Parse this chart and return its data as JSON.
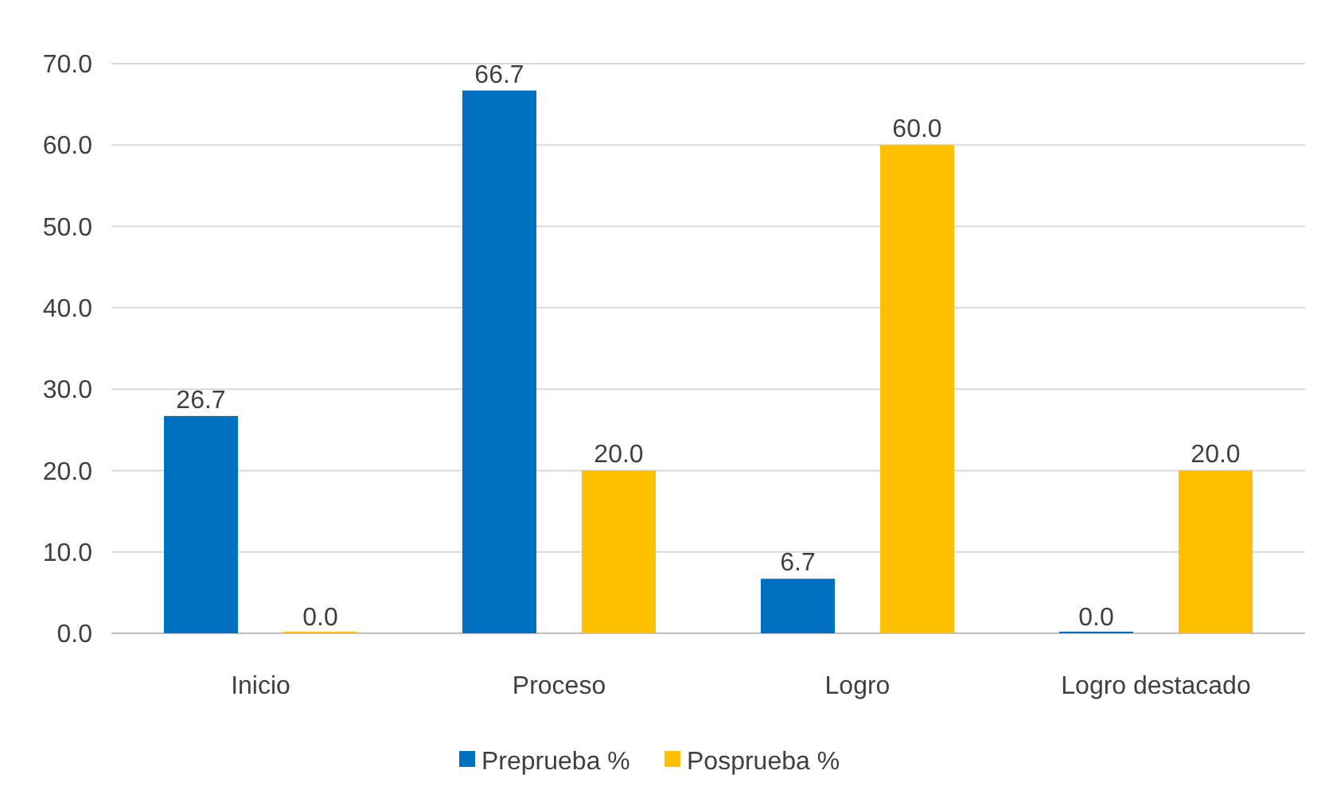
{
  "chart_data": {
    "type": "bar",
    "categories": [
      "Inicio",
      "Proceso",
      "Logro",
      "Logro destacado"
    ],
    "series": [
      {
        "name": "Preprueba %",
        "color": "#0070c0",
        "values": [
          26.7,
          66.7,
          6.7,
          0
        ],
        "value_labels": [
          "26.7",
          "66.7",
          "6.7",
          "0.0"
        ]
      },
      {
        "name": "Posprueba %",
        "color": "#ffc000",
        "values": [
          0,
          20,
          60,
          20
        ],
        "value_labels": [
          "0.0",
          "20.0",
          "60.0",
          "20.0"
        ]
      }
    ],
    "ylim": [
      0,
      70
    ],
    "yticks": [
      {
        "value": 0,
        "label": "0.0"
      },
      {
        "value": 10,
        "label": "10.0"
      },
      {
        "value": 20,
        "label": "20.0"
      },
      {
        "value": 30,
        "label": "30.0"
      },
      {
        "value": 40,
        "label": "40.0"
      },
      {
        "value": 50,
        "label": "50.0"
      },
      {
        "value": 60,
        "label": "60.0"
      },
      {
        "value": 70,
        "label": "70.0"
      }
    ],
    "grid": "y",
    "legend": "bottom"
  }
}
